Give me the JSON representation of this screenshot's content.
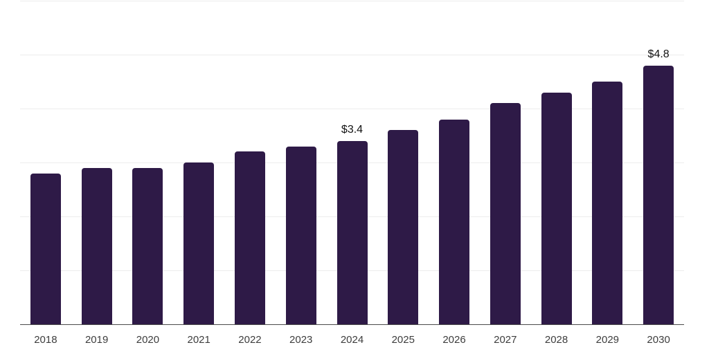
{
  "chart_data": {
    "type": "bar",
    "title": "",
    "xlabel": "",
    "ylabel": "",
    "categories": [
      "2018",
      "2019",
      "2020",
      "2021",
      "2022",
      "2023",
      "2024",
      "2025",
      "2026",
      "2027",
      "2028",
      "2029",
      "2030"
    ],
    "values": [
      2.8,
      2.9,
      2.9,
      3.0,
      3.2,
      3.3,
      3.4,
      3.6,
      3.8,
      4.1,
      4.3,
      4.5,
      4.8
    ],
    "ylim": [
      0,
      6
    ],
    "gridline_step": 1,
    "grid": true,
    "legend": "none",
    "annotations": [
      {
        "category": "2024",
        "text": "$3.4"
      },
      {
        "category": "2030",
        "text": "$4.8"
      }
    ]
  },
  "colors": {
    "background": "#ffffff",
    "bar": "#2e1a47",
    "gridline": "#ececec",
    "axis_line": "#4a4a4a",
    "tick_label": "#3d3d3d",
    "value_label": "#111111"
  }
}
